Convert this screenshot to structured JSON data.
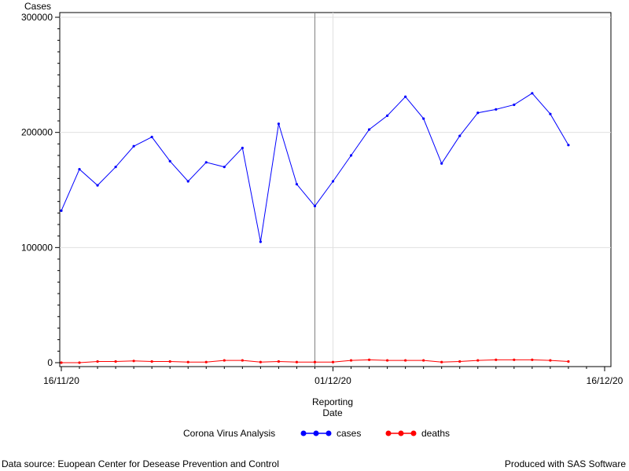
{
  "chart_data": {
    "type": "line",
    "ylabel": "Cases",
    "xlabel": [
      "Reporting",
      "Date"
    ],
    "x_ticks": [
      "16/11/20",
      "01/12/20",
      "16/12/20"
    ],
    "x_range": [
      "16/11/20",
      "16/12/20"
    ],
    "y_ticks": [
      "0",
      "100000",
      "200000",
      "300000"
    ],
    "ylim": [
      0,
      300000
    ],
    "grid": true,
    "reference_line_date": "30/11/20",
    "x": [
      "16/11/20",
      "17/11/20",
      "18/11/20",
      "19/11/20",
      "20/11/20",
      "21/11/20",
      "22/11/20",
      "23/11/20",
      "24/11/20",
      "25/11/20",
      "26/11/20",
      "27/11/20",
      "28/11/20",
      "29/11/20",
      "30/11/20",
      "01/12/20",
      "02/12/20",
      "03/12/20",
      "04/12/20",
      "05/12/20",
      "06/12/20",
      "07/12/20",
      "08/12/20",
      "09/12/20",
      "10/12/20",
      "11/12/20",
      "12/12/20",
      "13/12/20",
      "14/12/20"
    ],
    "series": [
      {
        "name": "cases",
        "color": "#0000ff",
        "values": [
          132000,
          168000,
          154000,
          170000,
          188000,
          196000,
          175000,
          157500,
          174000,
          170000,
          186500,
          105000,
          207500,
          155000,
          136000,
          157500,
          180000,
          202500,
          214500,
          231000,
          212000,
          173000,
          197000,
          217000,
          220000,
          224000,
          234000,
          216000,
          189000
        ]
      },
      {
        "name": "deaths",
        "color": "#ff0000",
        "values": [
          0,
          0,
          1000,
          1000,
          1500,
          1000,
          1000,
          500,
          500,
          2000,
          2000,
          500,
          1000,
          500,
          500,
          500,
          2000,
          2500,
          2000,
          2000,
          2000,
          500,
          1000,
          2000,
          2500,
          2500,
          2500,
          2000,
          1000
        ]
      }
    ],
    "legend": {
      "title": "Corona Virus Analysis",
      "placement": "bottom",
      "entries": [
        {
          "label": "cases",
          "color": "#0000ff"
        },
        {
          "label": "deaths",
          "color": "#ff0000"
        }
      ]
    }
  },
  "footer": {
    "source": "Data source: Euopean Center for Desease Prevention and Control",
    "produced": "Produced with SAS Software"
  }
}
